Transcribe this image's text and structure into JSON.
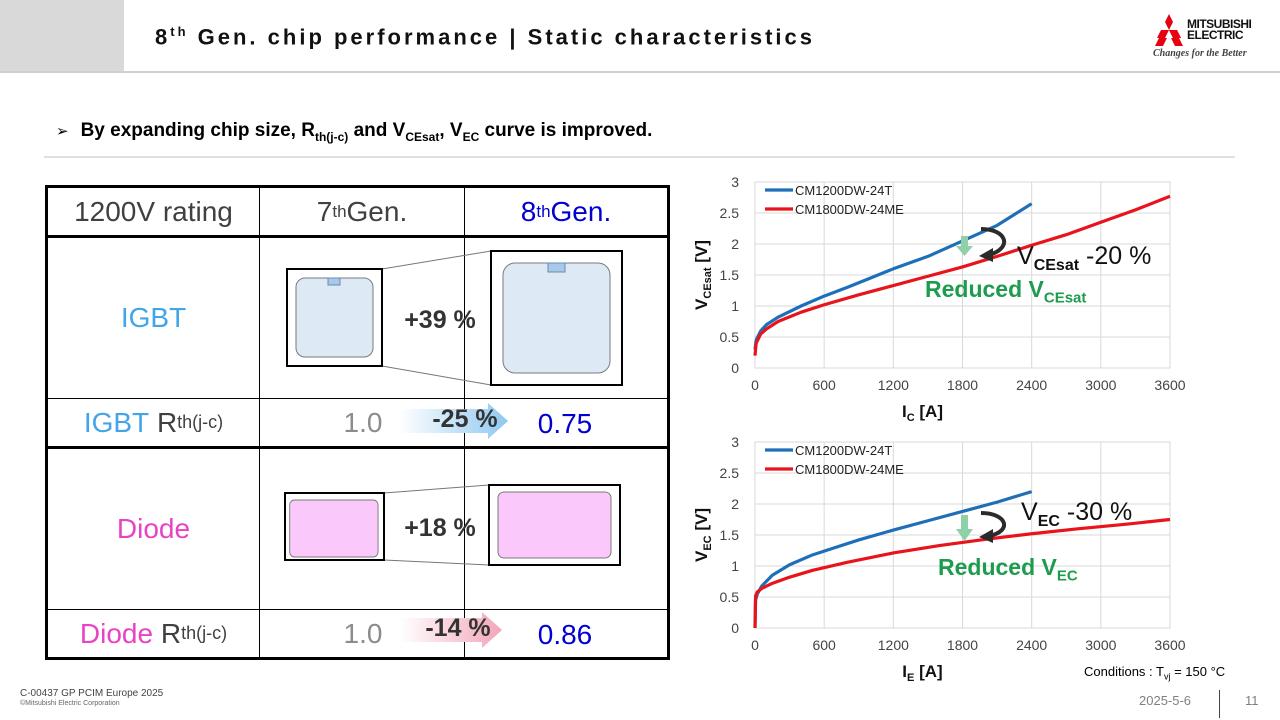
{
  "header": {
    "title_main": "8",
    "title_sup": "th",
    "title_rest": " Gen. chip performance | Static characteristics",
    "logo_line1": "MITSUBISHI",
    "logo_line2": "ELECTRIC",
    "logo_tagline": "Changes for the Better"
  },
  "bullet": {
    "marker": "➢",
    "p1": "By expanding chip size, R",
    "sub1": "th(j-c)",
    "p2": " and V",
    "sub2": "CEsat",
    "p3": ", V",
    "sub3": "EC",
    "p4": " curve is improved."
  },
  "table": {
    "h_rating": "1200V rating",
    "h7_num": "7",
    "h7_sup": "th",
    "h7_rest": " Gen.",
    "h8_num": "8",
    "h8_sup": "th",
    "h8_rest": " Gen.",
    "igbt": "IGBT",
    "igbt_pct": "+39 %",
    "igbt_r_label1": "IGBT ",
    "igbt_r_label2": "R",
    "igbt_r_sub": "th(j-c)",
    "igbt_r7": "1.0",
    "igbt_r_change": "-25 %",
    "igbt_r8": "0.75",
    "diode": "Diode",
    "diode_pct": "+18 %",
    "diode_r_label1": "Diode ",
    "diode_r_label2": "R",
    "diode_r_sub": "th(j-c)",
    "diode_r7": "1.0",
    "diode_r_change": "-14 %",
    "diode_r8": "0.86"
  },
  "annotations": {
    "vce_main": "V",
    "vce_sub": "CEsat",
    "vce_pct": " -20 %",
    "vce_reduced": "Reduced V",
    "vce_reduced_sub": "CEsat",
    "vec_main": "V",
    "vec_sub": "EC",
    "vec_pct": " -30 %",
    "vec_reduced": "Reduced V",
    "vec_reduced_sub": "EC",
    "cond_text": "Conditions : T",
    "cond_sub": "vj",
    "cond_rest": " = 150 °C"
  },
  "footer": {
    "doc_id": "C-00437 GP PCIM Europe 2025",
    "copyright": "©Mitsubishi Electric Corporation",
    "date": "2025-5-6",
    "page": "11"
  },
  "colors": {
    "series_24T": "#1f6fb8",
    "series_24ME": "#e8141c",
    "igbt_blue": "#42a5e8",
    "diode_pink": "#e843c4",
    "gen8_blue": "#0000d0",
    "reduced_green": "#1e9c4e"
  },
  "chart_data": [
    {
      "type": "line",
      "xlabel": "I",
      "xlabel_sub": "C",
      "xlabel_unit": " [A]",
      "ylabel": "V",
      "ylabel_sub": "CEsat",
      "ylabel_unit": " [V]",
      "xlim": [
        0,
        3600
      ],
      "ylim": [
        0,
        3
      ],
      "xticks": [
        "0",
        "600",
        "1200",
        "1800",
        "2400",
        "3000",
        "3600"
      ],
      "yticks": [
        "0",
        "0.5",
        "1",
        "1.5",
        "2",
        "2.5",
        "3"
      ],
      "grid": true,
      "legend": "top-left",
      "series": [
        {
          "name": "CM1200DW-24T",
          "color": "#1f6fb8",
          "x": [
            0,
            10,
            50,
            100,
            200,
            400,
            600,
            800,
            1000,
            1200,
            1500,
            1800,
            2100,
            2400
          ],
          "y": [
            0.3,
            0.45,
            0.6,
            0.7,
            0.82,
            1.0,
            1.16,
            1.3,
            1.45,
            1.6,
            1.8,
            2.05,
            2.3,
            2.65
          ]
        },
        {
          "name": "CM1800DW-24ME",
          "color": "#e8141c",
          "x": [
            0,
            10,
            50,
            100,
            200,
            400,
            600,
            900,
            1200,
            1500,
            1800,
            2100,
            2400,
            2700,
            3000,
            3300,
            3600
          ],
          "y": [
            0.2,
            0.4,
            0.55,
            0.63,
            0.75,
            0.9,
            1.02,
            1.18,
            1.33,
            1.48,
            1.63,
            1.8,
            1.98,
            2.15,
            2.35,
            2.55,
            2.77
          ]
        }
      ]
    },
    {
      "type": "line",
      "xlabel": "I",
      "xlabel_sub": "E",
      "xlabel_unit": " [A]",
      "ylabel": "V",
      "ylabel_sub": "EC",
      "ylabel_unit": " [V]",
      "xlim": [
        0,
        3600
      ],
      "ylim": [
        0,
        3
      ],
      "xticks": [
        "0",
        "600",
        "1200",
        "1800",
        "2400",
        "3000",
        "3600"
      ],
      "yticks": [
        "0",
        "0.5",
        "1",
        "1.5",
        "2",
        "2.5",
        "3"
      ],
      "grid": true,
      "legend": "top-left",
      "series": [
        {
          "name": "CM1200DW-24T",
          "color": "#1f6fb8",
          "x": [
            0,
            5,
            20,
            60,
            150,
            300,
            500,
            700,
            900,
            1200,
            1500,
            1800,
            2100,
            2400
          ],
          "y": [
            0.0,
            0.45,
            0.55,
            0.68,
            0.85,
            1.02,
            1.18,
            1.3,
            1.42,
            1.58,
            1.73,
            1.88,
            2.03,
            2.2
          ]
        },
        {
          "name": "CM1800DW-24ME",
          "color": "#e8141c",
          "x": [
            0,
            5,
            20,
            60,
            150,
            300,
            500,
            800,
            1200,
            1600,
            2000,
            2400,
            2800,
            3200,
            3600
          ],
          "y": [
            0.0,
            0.52,
            0.58,
            0.64,
            0.72,
            0.82,
            0.93,
            1.06,
            1.21,
            1.33,
            1.43,
            1.52,
            1.6,
            1.67,
            1.75
          ]
        }
      ]
    }
  ]
}
